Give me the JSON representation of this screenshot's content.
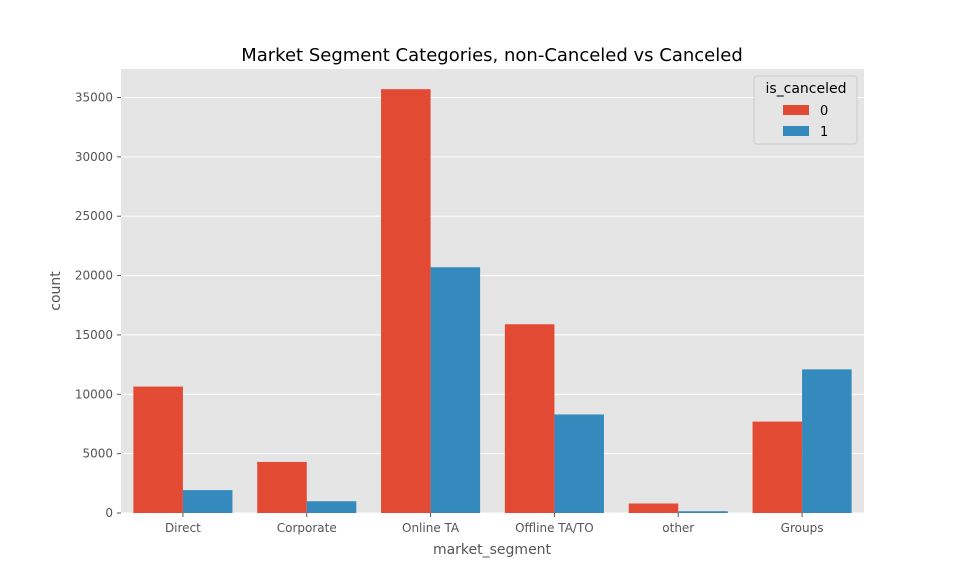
{
  "chart_data": {
    "type": "bar",
    "title": "Market Segment Categories, non-Canceled vs Canceled",
    "xlabel": "market_segment",
    "ylabel": "count",
    "categories": [
      "Direct",
      "Corporate",
      "Online TA",
      "Offline TA/TO",
      "other",
      "Groups"
    ],
    "series": [
      {
        "name": "0",
        "color": "#E24A33",
        "values": [
          10650,
          4300,
          35700,
          15900,
          800,
          7700
        ]
      },
      {
        "name": "1",
        "color": "#348ABD",
        "values": [
          1930,
          990,
          20700,
          8300,
          150,
          12100
        ]
      }
    ],
    "ylim": [
      0,
      37400
    ],
    "yticks": [
      0,
      5000,
      10000,
      15000,
      20000,
      25000,
      30000,
      35000
    ],
    "grid": true,
    "legend": {
      "title": "is_canceled",
      "position": "top-right"
    },
    "background": "#E5E5E5"
  }
}
